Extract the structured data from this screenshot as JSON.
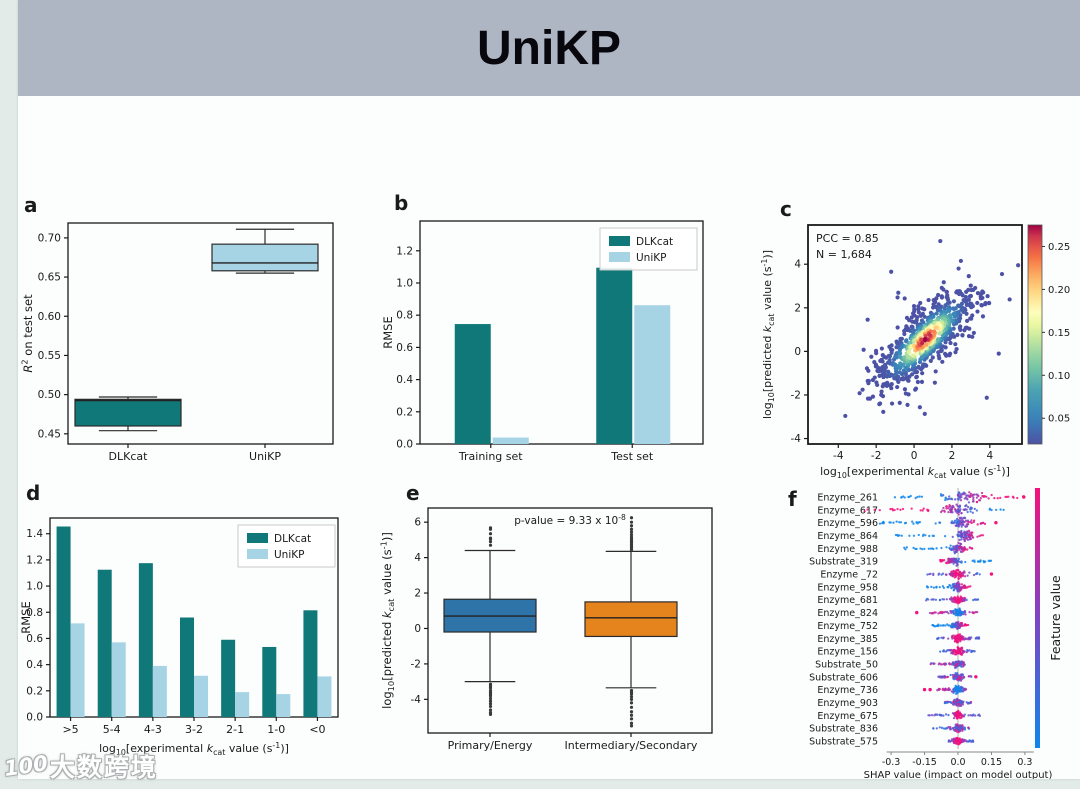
{
  "page": {
    "title": "UniKP",
    "watermark": {
      "logo_text": "100",
      "text": "大数跨境"
    }
  },
  "colors": {
    "titlebar_bg": "#aeb5c3",
    "dlkcat_teal": "#117879",
    "unikp_lightblue": "#a6d4e4",
    "box_blue": "#2e74a8",
    "box_orange": "#e5831c",
    "shap_pink": "#f5117c",
    "shap_blue": "#0f86ea",
    "axis": "#1a1a1a"
  },
  "chart_data": [
    {
      "id": "a",
      "type": "box",
      "panel_label": "a",
      "ylabel": "*R*^2^ on test set",
      "ylim": [
        0.437,
        0.719
      ],
      "yticks": [
        "0.45",
        "0.50",
        "0.55",
        "0.60",
        "0.65",
        "0.70"
      ],
      "categories": [
        "DLKcat",
        "UniKP"
      ],
      "boxes": [
        {
          "label": "DLKcat",
          "color": "#117879",
          "whisker_low": 0.454,
          "q1": 0.46,
          "median": 0.4925,
          "q3": 0.494,
          "whisker_high": 0.497,
          "outliers_above": [],
          "outliers_below": []
        },
        {
          "label": "UniKP",
          "color": "#a6d4e4",
          "whisker_low": 0.655,
          "q1": 0.658,
          "median": 0.668,
          "q3": 0.692,
          "whisker_high": 0.711,
          "outliers_above": [],
          "outliers_below": []
        }
      ]
    },
    {
      "id": "b",
      "type": "grouped_bar",
      "panel_label": "b",
      "ylabel": "RMSE",
      "ylim": [
        0,
        1.385
      ],
      "yticks": [
        "0.0",
        "0.2",
        "0.4",
        "0.6",
        "0.8",
        "1.0",
        "1.2"
      ],
      "categories": [
        "Training set",
        "Test set"
      ],
      "series": [
        {
          "name": "DLKcat",
          "color": "#117879",
          "values": [
            0.745,
            1.095
          ]
        },
        {
          "name": "UniKP",
          "color": "#a6d4e4",
          "values": [
            0.04,
            0.862
          ]
        }
      ],
      "legend": [
        "DLKcat",
        "UniKP"
      ]
    },
    {
      "id": "c",
      "type": "scatter_density",
      "panel_label": "c",
      "annotation": [
        "PCC = 0.85",
        "N = 1,684"
      ],
      "pcc": 0.85,
      "n_points": "1,684",
      "xlabel": "log~10~[experimental *k*~cat~ value (s^-1^)]",
      "ylabel": "log~10~[predicted *k*~cat~ value (s^-1^)]",
      "xlim": [
        -5.6,
        5.7
      ],
      "ylim": [
        -4.25,
        5.8
      ],
      "xticks": [
        "-4",
        "-2",
        "0",
        "2",
        "4"
      ],
      "yticks": [
        "-4",
        "-2",
        "0",
        "2",
        "4"
      ],
      "colorbar": {
        "ticks": [
          "0.05",
          "0.10",
          "0.15",
          "0.20",
          "0.25"
        ],
        "cmin": 0.02,
        "cmax": 0.275,
        "colormap": "spectral_r"
      }
    },
    {
      "id": "d",
      "type": "grouped_bar",
      "panel_label": "d",
      "ylabel": "RMSE",
      "xlabel": "log~10~[experimental *k*~cat~ value (s^-1^)]",
      "ylim": [
        0,
        1.52
      ],
      "yticks": [
        "0.0",
        "0.2",
        "0.4",
        "0.6",
        "0.8",
        "1.0",
        "1.2",
        "1.4"
      ],
      "categories": [
        ">5",
        "5-4",
        "4-3",
        "3-2",
        "2-1",
        "1-0",
        "<0"
      ],
      "series": [
        {
          "name": "DLKcat",
          "color": "#117879",
          "values": [
            1.455,
            1.125,
            1.175,
            0.76,
            0.59,
            0.535,
            0.815
          ]
        },
        {
          "name": "UniKP",
          "color": "#a6d4e4",
          "values": [
            0.715,
            0.57,
            0.39,
            0.315,
            0.19,
            0.175,
            0.31
          ]
        }
      ],
      "legend": [
        "DLKcat",
        "UniKP"
      ]
    },
    {
      "id": "e",
      "type": "box",
      "panel_label": "e",
      "annotation": "p-value = 9.33 x 10^-8^",
      "ylabel": "log~10~[predicted *k*~cat~ value (s^-1^)]",
      "ylim": [
        -5.9,
        6.8
      ],
      "yticks": [
        "-4",
        "-2",
        "0",
        "2",
        "4",
        "6"
      ],
      "categories": [
        "Primary/Energy",
        "Intermediary/Secondary"
      ],
      "boxes": [
        {
          "label": "Primary/Energy",
          "color": "#2e74a8",
          "whisker_low": -3.0,
          "q1": -0.2,
          "median": 0.7,
          "q3": 1.65,
          "whisker_high": 4.4,
          "outliers_above": [
            4.7,
            4.9,
            5.05,
            5.1,
            5.35,
            5.6,
            5.68
          ],
          "outliers_below": [
            -3.15,
            -3.25,
            -3.35,
            -3.5,
            -3.6,
            -3.7,
            -3.8,
            -3.95,
            -4.1,
            -4.25,
            -4.4,
            -4.6,
            -4.75,
            -4.85
          ]
        },
        {
          "label": "Intermediary/Secondary",
          "color": "#e5831c",
          "whisker_low": -3.35,
          "q1": -0.45,
          "median": 0.6,
          "q3": 1.5,
          "whisker_high": 4.35,
          "outliers_above": [
            4.45,
            4.55,
            4.65,
            4.75,
            4.85,
            4.95,
            5.05,
            5.15,
            5.3,
            5.45,
            5.6,
            5.8,
            6.0,
            6.25
          ],
          "outliers_below": [
            -3.5,
            -3.6,
            -3.7,
            -3.85,
            -4.0,
            -4.2,
            -4.45,
            -4.7,
            -4.9,
            -5.1,
            -5.35,
            -5.5
          ]
        }
      ]
    },
    {
      "id": "f",
      "type": "beeswarm",
      "panel_label": "f",
      "xlabel": "SHAP value (impact on model output)",
      "xticks": [
        "-0.3",
        "-0.15",
        "0.0",
        "0.15",
        "0.3"
      ],
      "colorbar_label": "Feature value",
      "features": [
        {
          "name": "Enzyme_261",
          "lo": -0.3,
          "hi": 0.295,
          "center": 0.03,
          "spread": 0.13,
          "pattern": "pr",
          "thickness": 5.2,
          "accents": [
            0.295
          ]
        },
        {
          "name": "Enzyme_617",
          "lo": -0.42,
          "hi": 0.21,
          "center": 0.0,
          "spread": 0.085,
          "pattern": "pl",
          "thickness": 5.2,
          "accents": []
        },
        {
          "name": "Enzyme_596",
          "lo": -0.35,
          "hi": 0.13,
          "center": 0.02,
          "spread": 0.055,
          "pattern": "pr",
          "thickness": 4.6,
          "accents": [
            0.17
          ]
        },
        {
          "name": "Enzyme_864",
          "lo": -0.28,
          "hi": 0.12,
          "center": 0.03,
          "spread": 0.05,
          "pattern": "pr",
          "thickness": 4.6,
          "accents": []
        },
        {
          "name": "Enzyme_988",
          "lo": -0.25,
          "hi": 0.07,
          "center": 0.0,
          "spread": 0.042,
          "pattern": "pr",
          "thickness": 4.6,
          "accents": []
        },
        {
          "name": "Substrate_319",
          "lo": -0.08,
          "hi": 0.15,
          "center": -0.02,
          "spread": 0.04,
          "pattern": "pl",
          "thickness": 4.2,
          "accents": []
        },
        {
          "name": "Enzyme _72",
          "lo": -0.14,
          "hi": 0.1,
          "center": 0.0,
          "spread": 0.04,
          "pattern": "pc",
          "thickness": 4.2,
          "accents": [
            0.15
          ]
        },
        {
          "name": "Enzyme_958",
          "lo": -0.14,
          "hi": 0.06,
          "center": 0.0,
          "spread": 0.042,
          "pattern": "pr",
          "thickness": 4.2,
          "accents": []
        },
        {
          "name": "Enzyme_681",
          "lo": -0.145,
          "hi": 0.09,
          "center": 0.0,
          "spread": 0.035,
          "pattern": "pc",
          "thickness": 3.8,
          "accents": []
        },
        {
          "name": "Enzyme_824",
          "lo": -0.13,
          "hi": 0.095,
          "center": 0.0,
          "spread": 0.035,
          "pattern": "bc",
          "thickness": 3.8,
          "accents": [
            -0.185
          ]
        },
        {
          "name": "Enzyme_752",
          "lo": -0.115,
          "hi": 0.05,
          "center": 0.0,
          "spread": 0.035,
          "pattern": "pr",
          "thickness": 3.8,
          "accents": []
        },
        {
          "name": "Enzyme_385",
          "lo": -0.095,
          "hi": 0.095,
          "center": 0.0,
          "spread": 0.035,
          "pattern": "pc",
          "thickness": 3.8,
          "accents": []
        },
        {
          "name": "Enzyme_156",
          "lo": -0.08,
          "hi": 0.075,
          "center": 0.0,
          "spread": 0.035,
          "pattern": "pc",
          "thickness": 3.8,
          "accents": []
        },
        {
          "name": "Substrate_50",
          "lo": -0.125,
          "hi": 0.035,
          "center": 0.0,
          "spread": 0.032,
          "pattern": "mx",
          "thickness": 3.8,
          "accents": []
        },
        {
          "name": "Substrate_606",
          "lo": -0.09,
          "hi": 0.06,
          "center": 0.0,
          "spread": 0.032,
          "pattern": "mx",
          "thickness": 3.8,
          "accents": [
            0.08
          ]
        },
        {
          "name": "Enzyme_736",
          "lo": -0.1,
          "hi": 0.04,
          "center": 0.0,
          "spread": 0.032,
          "pattern": "bc",
          "thickness": 3.8,
          "accents": [
            -0.15,
            -0.125
          ]
        },
        {
          "name": "Enzyme_903",
          "lo": -0.065,
          "hi": 0.06,
          "center": 0.0,
          "spread": 0.03,
          "pattern": "mx",
          "thickness": 3.6,
          "accents": []
        },
        {
          "name": "Enzyme_675",
          "lo": -0.135,
          "hi": 0.1,
          "center": 0.0,
          "spread": 0.03,
          "pattern": "pc",
          "thickness": 3.6,
          "accents": []
        },
        {
          "name": "Substrate_836",
          "lo": -0.115,
          "hi": 0.05,
          "center": 0.0,
          "spread": 0.03,
          "pattern": "mx",
          "thickness": 3.6,
          "accents": []
        },
        {
          "name": "Substrate_575",
          "lo": -0.045,
          "hi": 0.07,
          "center": 0.0,
          "spread": 0.028,
          "pattern": "pc",
          "thickness": 3.6,
          "accents": []
        }
      ]
    }
  ]
}
